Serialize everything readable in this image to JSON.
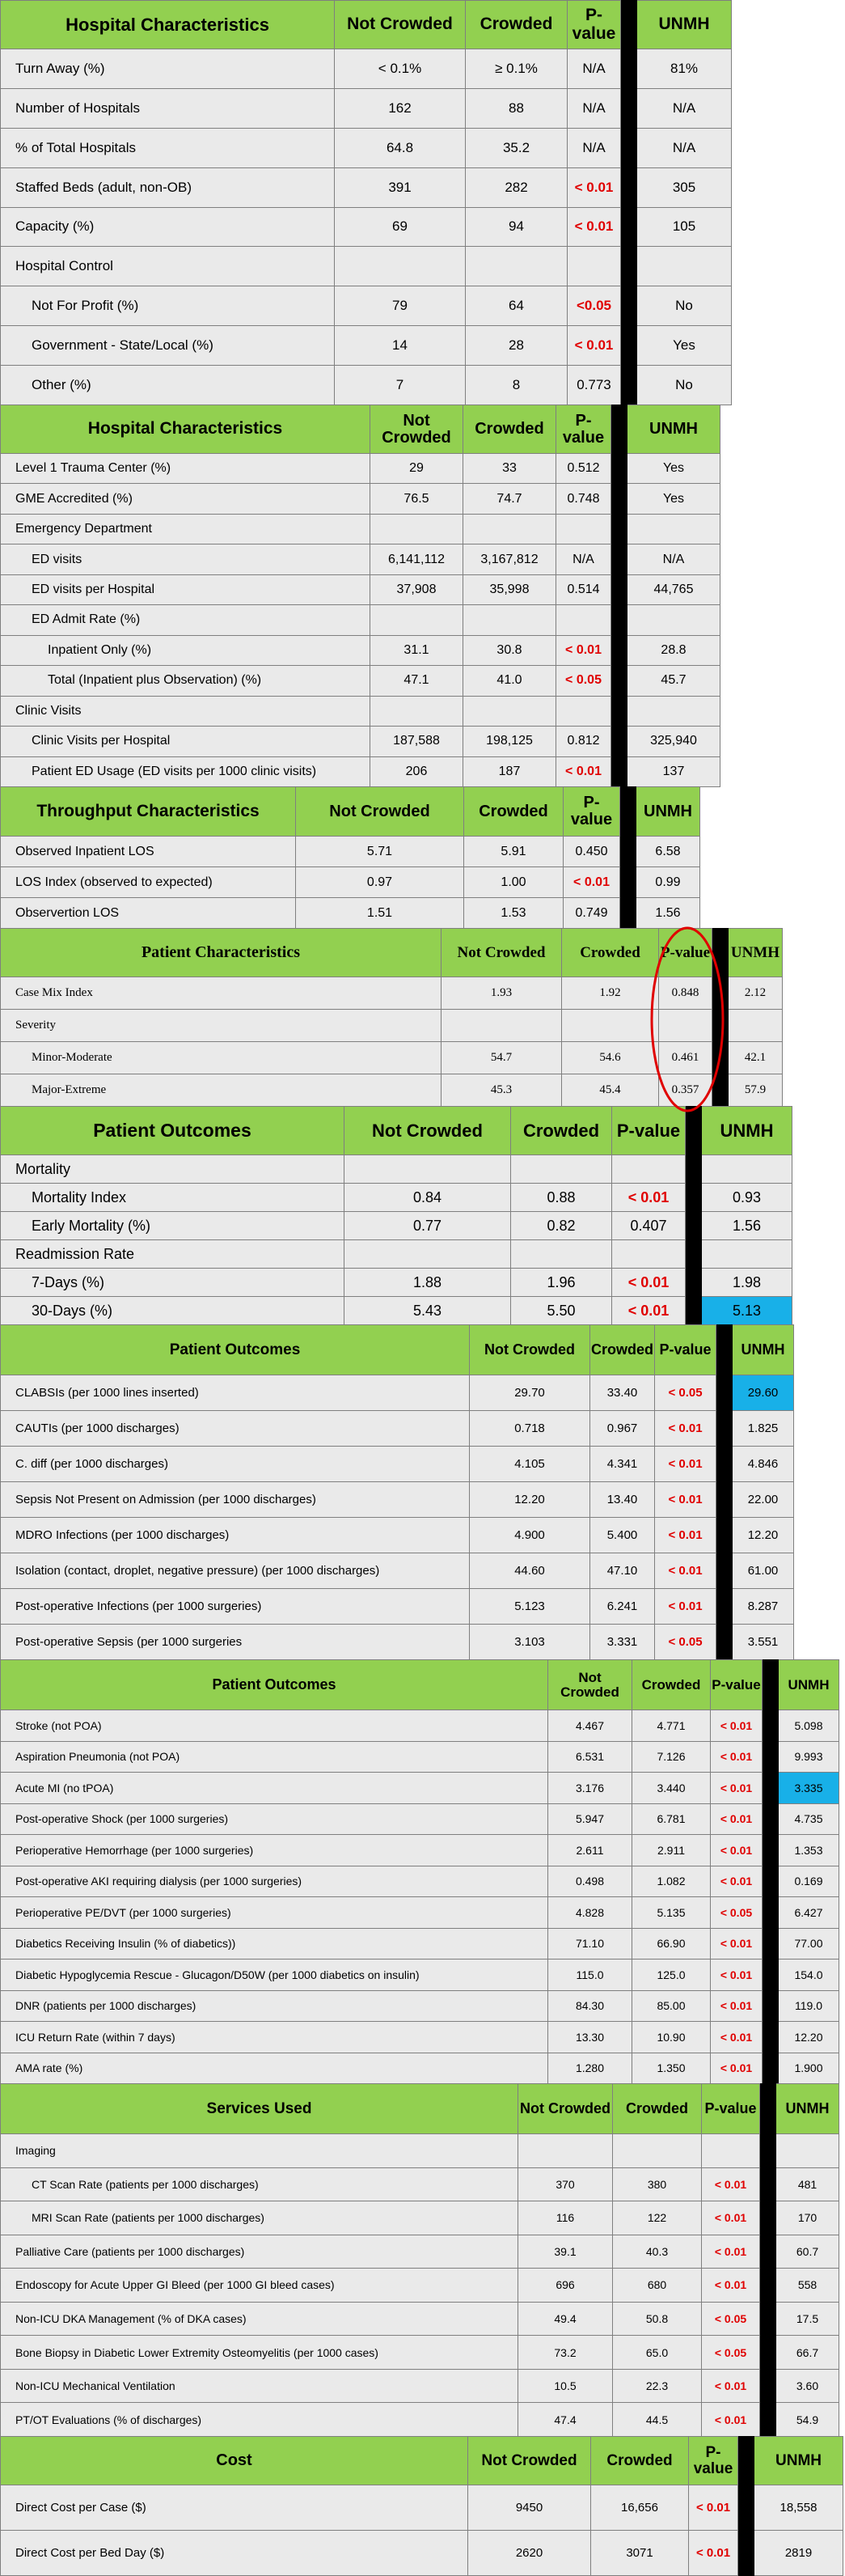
{
  "sections": [
    {
      "header": [
        "Hospital Characteristics",
        "Not Crowded",
        "Crowded",
        "P-value",
        "",
        "UNMH"
      ],
      "rows": [
        {
          "label": "Turn Away (%)",
          "indent": 0,
          "nc": "< 0.1%",
          "cr": "≥ 0.1%",
          "p": "N/A",
          "red": false,
          "u": "81%"
        },
        {
          "label": "Number of Hospitals",
          "indent": 0,
          "nc": "162",
          "cr": "88",
          "p": "N/A",
          "red": false,
          "u": "N/A"
        },
        {
          "label": "% of Total Hospitals",
          "indent": 0,
          "nc": "64.8",
          "cr": "35.2",
          "p": "N/A",
          "red": false,
          "u": "N/A"
        },
        {
          "label": "Staffed Beds (adult, non-OB)",
          "indent": 0,
          "nc": "391",
          "cr": "282",
          "p": "< 0.01",
          "red": true,
          "u": "305"
        },
        {
          "label": "Capacity (%)",
          "indent": 0,
          "nc": "69",
          "cr": "94",
          "p": "< 0.01",
          "red": true,
          "u": "105"
        },
        {
          "label": "Hospital Control",
          "indent": 0,
          "nc": "",
          "cr": "",
          "p": "",
          "red": false,
          "u": ""
        },
        {
          "label": "Not For Profit (%)",
          "indent": 1,
          "nc": "79",
          "cr": "64",
          "p": "<0.05",
          "red": true,
          "u": "No"
        },
        {
          "label": "Government - State/Local (%)",
          "indent": 1,
          "nc": "14",
          "cr": "28",
          "p": "< 0.01",
          "red": true,
          "u": "Yes"
        },
        {
          "label": "Other (%)",
          "indent": 1,
          "nc": "7",
          "cr": "8",
          "p": "0.773",
          "red": false,
          "u": "No"
        }
      ]
    },
    {
      "header": [
        "Hospital Characteristics",
        "Not Crowded",
        "Crowded",
        "P-value",
        "",
        "UNMH"
      ],
      "rows": [
        {
          "label": "Level 1 Trauma Center (%)",
          "indent": 0,
          "nc": "29",
          "cr": "33",
          "p": "0.512",
          "red": false,
          "u": "Yes"
        },
        {
          "label": "GME Accredited (%)",
          "indent": 0,
          "nc": "76.5",
          "cr": "74.7",
          "p": "0.748",
          "red": false,
          "u": "Yes"
        },
        {
          "label": "Emergency Department",
          "indent": 0,
          "nc": "",
          "cr": "",
          "p": "",
          "red": false,
          "u": ""
        },
        {
          "label": "ED visits",
          "indent": 1,
          "nc": "6,141,112",
          "cr": "3,167,812",
          "p": "N/A",
          "red": false,
          "u": "N/A"
        },
        {
          "label": "ED visits per Hospital",
          "indent": 1,
          "nc": "37,908",
          "cr": "35,998",
          "p": "0.514",
          "red": false,
          "u": "44,765"
        },
        {
          "label": "ED Admit Rate (%)",
          "indent": 1,
          "nc": "",
          "cr": "",
          "p": "",
          "red": false,
          "u": ""
        },
        {
          "label": "Inpatient Only (%)",
          "indent": 2,
          "nc": "31.1",
          "cr": "30.8",
          "p": "< 0.01",
          "red": true,
          "u": "28.8"
        },
        {
          "label": "Total (Inpatient plus Observation) (%)",
          "indent": 2,
          "nc": "47.1",
          "cr": "41.0",
          "p": "< 0.05",
          "red": true,
          "u": "45.7"
        },
        {
          "label": "Clinic Visits",
          "indent": 0,
          "nc": "",
          "cr": "",
          "p": "",
          "red": false,
          "u": ""
        },
        {
          "label": "Clinic Visits per Hospital",
          "indent": 1,
          "nc": "187,588",
          "cr": "198,125",
          "p": "0.812",
          "red": false,
          "u": "325,940"
        },
        {
          "label": "Patient ED Usage (ED visits per 1000 clinic visits)",
          "indent": 1,
          "nc": "206",
          "cr": "187",
          "p": "< 0.01",
          "red": true,
          "u": "137"
        }
      ]
    },
    {
      "header": [
        "Throughput Characteristics",
        "Not Crowded",
        "Crowded",
        "P-value",
        "",
        "UNMH"
      ],
      "rows": [
        {
          "label": "Observed Inpatient LOS",
          "indent": 0,
          "nc": "5.71",
          "cr": "5.91",
          "p": "0.450",
          "red": false,
          "u": "6.58"
        },
        {
          "label": "LOS Index (observed to expected)",
          "indent": 0,
          "nc": "0.97",
          "cr": "1.00",
          "p": "< 0.01",
          "red": true,
          "u": "0.99"
        },
        {
          "label": "Observertion LOS",
          "indent": 0,
          "nc": "1.51",
          "cr": "1.53",
          "p": "0.749",
          "red": false,
          "u": "1.56"
        }
      ]
    },
    {
      "header": [
        "Patient Characteristics",
        "Not Crowded",
        "Crowded",
        "P-value",
        "",
        "UNMH"
      ],
      "rows": [
        {
          "label": "Case Mix Index",
          "indent": 0,
          "nc": "1.93",
          "cr": "1.92",
          "p": "0.848",
          "red": false,
          "u": "2.12"
        },
        {
          "label": "Severity",
          "indent": 0,
          "nc": "",
          "cr": "",
          "p": "",
          "red": false,
          "u": ""
        },
        {
          "label": "Minor-Moderate",
          "indent": 1,
          "nc": "54.7",
          "cr": "54.6",
          "p": "0.461",
          "red": false,
          "u": "42.1"
        },
        {
          "label": "Major-Extreme",
          "indent": 1,
          "nc": "45.3",
          "cr": "45.4",
          "p": "0.357",
          "red": false,
          "u": "57.9"
        }
      ]
    },
    {
      "header": [
        "Patient Outcomes",
        "Not Crowded",
        "Crowded",
        "P-value",
        "",
        "UNMH"
      ],
      "rows": [
        {
          "label": "Mortality",
          "indent": 0,
          "nc": "",
          "cr": "",
          "p": "",
          "red": false,
          "u": ""
        },
        {
          "label": "Mortality Index",
          "indent": 1,
          "nc": "0.84",
          "cr": "0.88",
          "p": "< 0.01",
          "red": true,
          "u": "0.93"
        },
        {
          "label": "Early Mortality (%)",
          "indent": 1,
          "nc": "0.77",
          "cr": "0.82",
          "p": "0.407",
          "red": false,
          "u": "1.56"
        },
        {
          "label": "Readmission Rate",
          "indent": 0,
          "nc": "",
          "cr": "",
          "p": "",
          "red": false,
          "u": ""
        },
        {
          "label": "7-Days (%)",
          "indent": 1,
          "nc": "1.88",
          "cr": "1.96",
          "p": "< 0.01",
          "red": true,
          "u": "1.98"
        },
        {
          "label": "30-Days (%)",
          "indent": 1,
          "nc": "5.43",
          "cr": "5.50",
          "p": "< 0.01",
          "red": true,
          "u": "5.13",
          "hl": true
        }
      ]
    },
    {
      "header": [
        "Patient Outcomes",
        "Not Crowded",
        "Crowded",
        "P-value",
        "",
        "UNMH"
      ],
      "rows": [
        {
          "label": "CLABSIs (per 1000 lines inserted)",
          "indent": 0,
          "nc": "29.70",
          "cr": "33.40",
          "p": "< 0.05",
          "red": true,
          "u": "29.60",
          "hl": true
        },
        {
          "label": "CAUTIs (per 1000 discharges)",
          "indent": 0,
          "nc": "0.718",
          "cr": "0.967",
          "p": "< 0.01",
          "red": true,
          "u": "1.825"
        },
        {
          "label": "C. diff (per 1000 discharges)",
          "indent": 0,
          "nc": "4.105",
          "cr": "4.341",
          "p": "< 0.01",
          "red": true,
          "u": "4.846"
        },
        {
          "label": "Sepsis Not Present on Admission (per 1000 discharges)",
          "indent": 0,
          "nc": "12.20",
          "cr": "13.40",
          "p": "< 0.01",
          "red": true,
          "u": "22.00"
        },
        {
          "label": "MDRO Infections (per 1000 discharges)",
          "indent": 0,
          "nc": "4.900",
          "cr": "5.400",
          "p": "< 0.01",
          "red": true,
          "u": "12.20"
        },
        {
          "label": "Isolation (contact, droplet, negative pressure) (per 1000 discharges)",
          "indent": 0,
          "nc": "44.60",
          "cr": "47.10",
          "p": "< 0.01",
          "red": true,
          "u": "61.00"
        },
        {
          "label": "Post-operative Infections (per 1000 surgeries)",
          "indent": 0,
          "nc": "5.123",
          "cr": "6.241",
          "p": "< 0.01",
          "red": true,
          "u": "8.287"
        },
        {
          "label": "Post-operative Sepsis (per 1000 surgeries",
          "indent": 0,
          "nc": "3.103",
          "cr": "3.331",
          "p": "< 0.05",
          "red": true,
          "u": "3.551"
        }
      ]
    },
    {
      "header": [
        "Patient Outcomes",
        "Not Crowded",
        "Crowded",
        "P-value",
        "",
        "UNMH"
      ],
      "rows": [
        {
          "label": "Stroke (not POA)",
          "indent": 0,
          "nc": "4.467",
          "cr": "4.771",
          "p": "< 0.01",
          "red": true,
          "u": "5.098"
        },
        {
          "label": "Aspiration Pneumonia (not POA)",
          "indent": 0,
          "nc": "6.531",
          "cr": "7.126",
          "p": "< 0.01",
          "red": true,
          "u": "9.993"
        },
        {
          "label": "Acute MI (no tPOA)",
          "indent": 0,
          "nc": "3.176",
          "cr": "3.440",
          "p": "< 0.01",
          "red": true,
          "u": "3.335",
          "hl": true
        },
        {
          "label": "Post-operative Shock (per 1000 surgeries)",
          "indent": 0,
          "nc": "5.947",
          "cr": "6.781",
          "p": "< 0.01",
          "red": true,
          "u": "4.735"
        },
        {
          "label": "Perioperative Hemorrhage (per 1000 surgeries)",
          "indent": 0,
          "nc": "2.611",
          "cr": "2.911",
          "p": "< 0.01",
          "red": true,
          "u": "1.353"
        },
        {
          "label": "Post-operative AKI requiring dialysis (per 1000 surgeries)",
          "indent": 0,
          "nc": "0.498",
          "cr": "1.082",
          "p": "< 0.01",
          "red": true,
          "u": "0.169"
        },
        {
          "label": "Perioperative PE/DVT (per 1000 surgeries)",
          "indent": 0,
          "nc": "4.828",
          "cr": "5.135",
          "p": "< 0.05",
          "red": true,
          "u": "6.427"
        },
        {
          "label": "Diabetics Receiving Insulin (% of diabetics))",
          "indent": 0,
          "nc": "71.10",
          "cr": "66.90",
          "p": "< 0.01",
          "red": true,
          "u": "77.00"
        },
        {
          "label": "Diabetic Hypoglycemia Rescue - Glucagon/D50W (per 1000 diabetics on insulin)",
          "indent": 0,
          "nc": "115.0",
          "cr": "125.0",
          "p": "< 0.01",
          "red": true,
          "u": "154.0"
        },
        {
          "label": "DNR (patients per 1000 discharges)",
          "indent": 0,
          "nc": "84.30",
          "cr": "85.00",
          "p": "< 0.01",
          "red": true,
          "u": "119.0"
        },
        {
          "label": "ICU Return Rate (within 7 days)",
          "indent": 0,
          "nc": "13.30",
          "cr": "10.90",
          "p": "< 0.01",
          "red": true,
          "u": "12.20"
        },
        {
          "label": "AMA rate (%)",
          "indent": 0,
          "nc": "1.280",
          "cr": "1.350",
          "p": "< 0.01",
          "red": true,
          "u": "1.900"
        }
      ]
    },
    {
      "header": [
        "Services Used",
        "Not Crowded",
        "Crowded",
        "P-value",
        "",
        "UNMH"
      ],
      "rows": [
        {
          "label": "Imaging",
          "indent": 0,
          "nc": "",
          "cr": "",
          "p": "",
          "red": false,
          "u": ""
        },
        {
          "label": "CT Scan Rate (patients per 1000 discharges)",
          "indent": 1,
          "nc": "370",
          "cr": "380",
          "p": "< 0.01",
          "red": true,
          "u": "481"
        },
        {
          "label": "MRI Scan Rate (patients per 1000 discharges)",
          "indent": 1,
          "nc": "116",
          "cr": "122",
          "p": "< 0.01",
          "red": true,
          "u": "170"
        },
        {
          "label": "Palliative Care (patients per 1000 discharges)",
          "indent": 0,
          "nc": "39.1",
          "cr": "40.3",
          "p": "< 0.01",
          "red": true,
          "u": "60.7"
        },
        {
          "label": "Endoscopy for Acute Upper GI Bleed (per 1000 GI bleed cases)",
          "indent": 0,
          "nc": "696",
          "cr": "680",
          "p": "< 0.01",
          "red": true,
          "u": "558"
        },
        {
          "label": "Non-ICU DKA Management (% of DKA cases)",
          "indent": 0,
          "nc": "49.4",
          "cr": "50.8",
          "p": "< 0.05",
          "red": true,
          "u": "17.5"
        },
        {
          "label": "Bone Biopsy in Diabetic Lower Extremity Osteomyelitis (per 1000 cases)",
          "indent": 0,
          "nc": "73.2",
          "cr": "65.0",
          "p": "< 0.05",
          "red": true,
          "u": "66.7"
        },
        {
          "label": "Non-ICU Mechanical Ventilation",
          "indent": 0,
          "nc": "10.5",
          "cr": "22.3",
          "p": "< 0.01",
          "red": true,
          "u": "3.60"
        },
        {
          "label": "PT/OT Evaluations (% of discharges)",
          "indent": 0,
          "nc": "47.4",
          "cr": "44.5",
          "p": "< 0.01",
          "red": true,
          "u": "54.9"
        }
      ]
    },
    {
      "header": [
        "Cost",
        "Not Crowded",
        "Crowded",
        "P-value",
        "",
        "UNMH"
      ],
      "rows": [
        {
          "label": "Direct Cost per Case ($)",
          "indent": 0,
          "nc": "9450",
          "cr": "16,656",
          "p": "< 0.01",
          "red": true,
          "u": "18,558"
        },
        {
          "label": "Direct Cost per Bed Day ($)",
          "indent": 0,
          "nc": "2620",
          "cr": "3071",
          "p": "< 0.01",
          "red": true,
          "u": "2819"
        }
      ]
    }
  ]
}
